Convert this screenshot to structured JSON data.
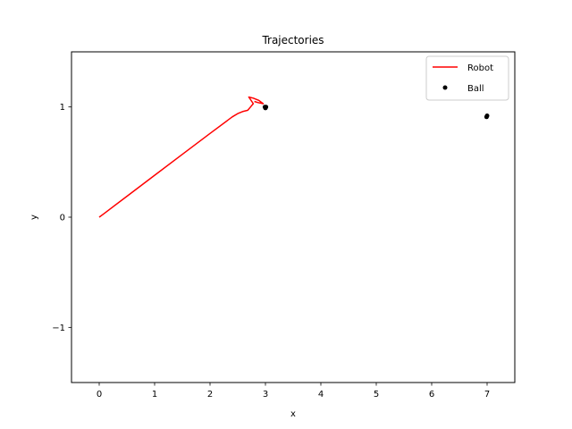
{
  "chart_data": {
    "type": "scatter",
    "title": "Trajectories",
    "xlabel": "x",
    "ylabel": "y",
    "xlim": [
      -0.5,
      7.5
    ],
    "ylim": [
      -1.5,
      1.5
    ],
    "xticks": [
      "0",
      "1",
      "2",
      "3",
      "4",
      "5",
      "6",
      "7"
    ],
    "yticks": [
      "−1",
      "0",
      "1"
    ],
    "grid": false,
    "legend_position": "top-right",
    "series": [
      {
        "name": "Robot",
        "kind": "line",
        "color": "#ff0000",
        "x": [
          0.0,
          0.08,
          0.5,
          1.0,
          1.5,
          2.0,
          2.4,
          2.5,
          2.6,
          2.68,
          2.73,
          2.78,
          2.7,
          2.78,
          2.88,
          2.96,
          2.86,
          2.8
        ],
        "y": [
          0.0,
          0.03,
          0.19,
          0.38,
          0.57,
          0.76,
          0.91,
          0.94,
          0.96,
          0.97,
          1.0,
          1.03,
          1.09,
          1.08,
          1.06,
          1.03,
          1.04,
          1.05
        ]
      },
      {
        "name": "Ball",
        "kind": "points",
        "color": "#000000",
        "x": [
          2.99,
          3.0,
          3.01,
          7.0,
          6.99
        ],
        "y": [
          1.0,
          0.99,
          1.0,
          0.92,
          0.91
        ]
      }
    ]
  }
}
